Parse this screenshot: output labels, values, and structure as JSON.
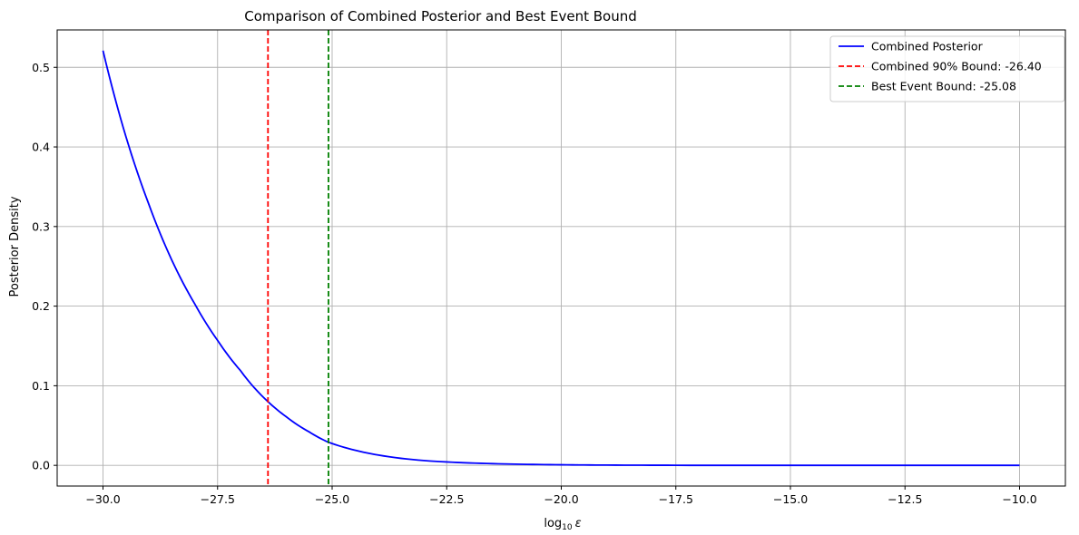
{
  "chart_data": {
    "type": "line",
    "title": "Comparison of Combined Posterior and Best Event Bound",
    "xlabel_base": "log",
    "xlabel_sub": "10",
    "xlabel_var": "ε",
    "ylabel": "Posterior Density",
    "xlim": [
      -31.0,
      -9.0
    ],
    "ylim": [
      -0.026,
      0.547
    ],
    "xticks": [
      -30.0,
      -27.5,
      -25.0,
      -22.5,
      -20.0,
      -17.5,
      -15.0,
      -12.5,
      -10.0
    ],
    "xtick_labels": [
      "−30.0",
      "−27.5",
      "−25.0",
      "−22.5",
      "−20.0",
      "−17.5",
      "−15.0",
      "−12.5",
      "−10.0"
    ],
    "yticks": [
      0.0,
      0.1,
      0.2,
      0.3,
      0.4,
      0.5
    ],
    "ytick_labels": [
      "0.0",
      "0.1",
      "0.2",
      "0.3",
      "0.4",
      "0.5"
    ],
    "grid": true,
    "legend_position": "top-right",
    "series": [
      {
        "name": "Combined Posterior",
        "style": "solid",
        "color": "#0000ff",
        "x": [
          -30.0,
          -29.5,
          -29.0,
          -28.5,
          -28.0,
          -27.5,
          -27.0,
          -26.4,
          -26.0,
          -25.5,
          -25.08,
          -24.5,
          -24.0,
          -23.0,
          -22.0,
          -21.0,
          -20.0,
          -19.0,
          -17.5,
          -15.0,
          -12.5,
          -10.0
        ],
        "y": [
          0.521,
          0.413,
          0.328,
          0.258,
          0.203,
          0.157,
          0.119,
          0.08,
          0.061,
          0.042,
          0.029,
          0.019,
          0.013,
          0.006,
          0.003,
          0.0015,
          0.0007,
          0.0003,
          0.0001,
          0.0,
          0.0,
          0.0
        ]
      },
      {
        "name": "Combined 90% Bound: -26.40",
        "style": "dashed-vertical",
        "color": "#ff0000",
        "x": -26.4
      },
      {
        "name": "Best Event Bound: -25.08",
        "style": "dashed-vertical",
        "color": "#008000",
        "x": -25.08
      }
    ]
  }
}
